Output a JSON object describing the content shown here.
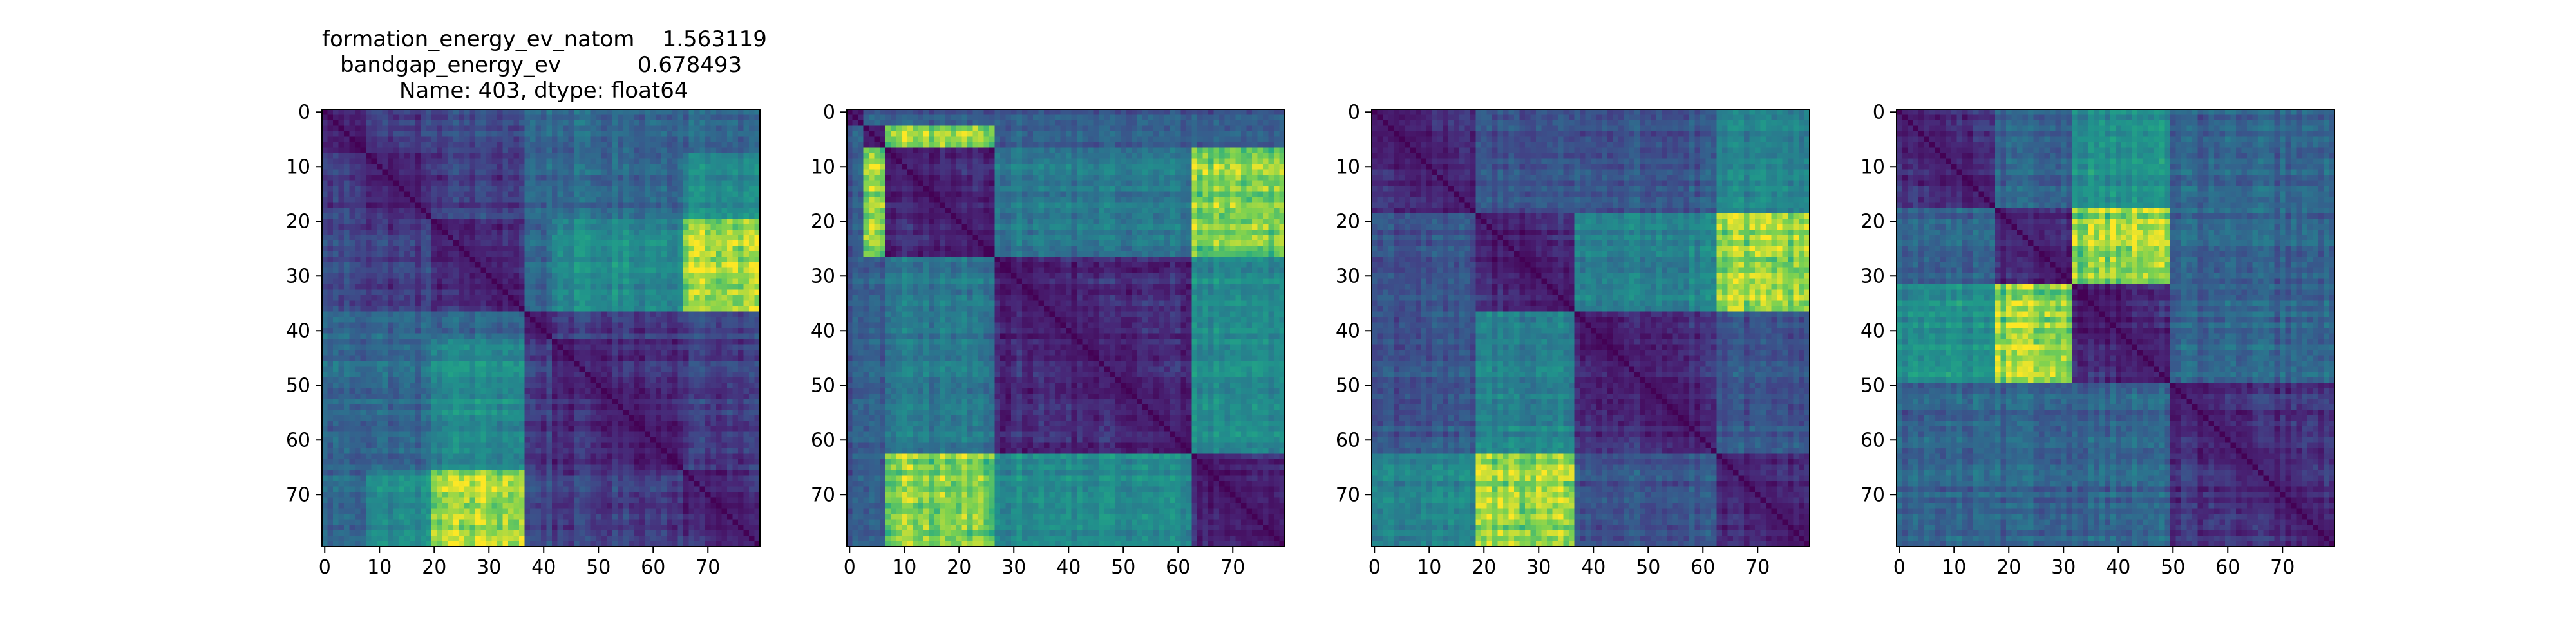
{
  "figure": {
    "title_lines": [
      "formation_energy_ev_natom    1.563119",
      "bandgap_energy_ev           0.678493",
      "Name: 403, dtype: float64"
    ]
  },
  "chart_data": [
    {
      "type": "heatmap",
      "title": "",
      "xlabel": "",
      "ylabel": "",
      "size": 80,
      "xlim": [
        0,
        79
      ],
      "ylim": [
        79,
        0
      ],
      "xticks": [
        0,
        10,
        20,
        30,
        40,
        50,
        60,
        70
      ],
      "yticks": [
        0,
        10,
        20,
        30,
        40,
        50,
        60,
        70
      ],
      "colormap": "viridis",
      "diagonal": "minimum",
      "block_boundaries": [
        0,
        37,
        42,
        66,
        80
      ],
      "description_blocks": "two main blocks: 0-37 and 37-80; bright off-diagonal region near rows 20-35 / cols 65-80 and rows 65-80 / cols 20-35"
    },
    {
      "type": "heatmap",
      "title": "",
      "xlabel": "",
      "ylabel": "",
      "size": 80,
      "xlim": [
        0,
        79
      ],
      "ylim": [
        79,
        0
      ],
      "xticks": [
        0,
        10,
        20,
        30,
        40,
        50,
        60,
        70
      ],
      "yticks": [
        0,
        10,
        20,
        30,
        40,
        50,
        60,
        70
      ],
      "colormap": "viridis",
      "diagonal": "minimum",
      "block_boundaries": [
        0,
        7,
        27,
        63,
        80
      ],
      "description_blocks": "bright bands at rows/cols 0-7 and 63-80 crossing 7-27"
    },
    {
      "type": "heatmap",
      "title": "",
      "xlabel": "",
      "ylabel": "",
      "size": 80,
      "xlim": [
        0,
        79
      ],
      "ylim": [
        79,
        0
      ],
      "xticks": [
        0,
        10,
        20,
        30,
        40,
        50,
        60,
        70
      ],
      "yticks": [
        0,
        10,
        20,
        30,
        40,
        50,
        60,
        70
      ],
      "colormap": "viridis",
      "diagonal": "minimum",
      "block_boundaries": [
        0,
        19,
        37,
        80
      ],
      "description_blocks": "bright off-diagonal near rows 20-35 / cols 63-80 and rows 63-80 / cols 19-37"
    },
    {
      "type": "heatmap",
      "title": "",
      "xlabel": "",
      "ylabel": "",
      "size": 80,
      "xlim": [
        0,
        79
      ],
      "ylim": [
        79,
        0
      ],
      "xticks": [
        0,
        10,
        20,
        30,
        40,
        50,
        60,
        70
      ],
      "yticks": [
        0,
        10,
        20,
        30,
        40,
        50,
        60,
        70
      ],
      "colormap": "viridis",
      "diagonal": "minimum",
      "block_boundaries": [
        0,
        32,
        50,
        80
      ],
      "description_blocks": "bright off-diagonal at rows 18-32 / cols 32-50 and rows 32-50 / cols 18-32"
    }
  ]
}
